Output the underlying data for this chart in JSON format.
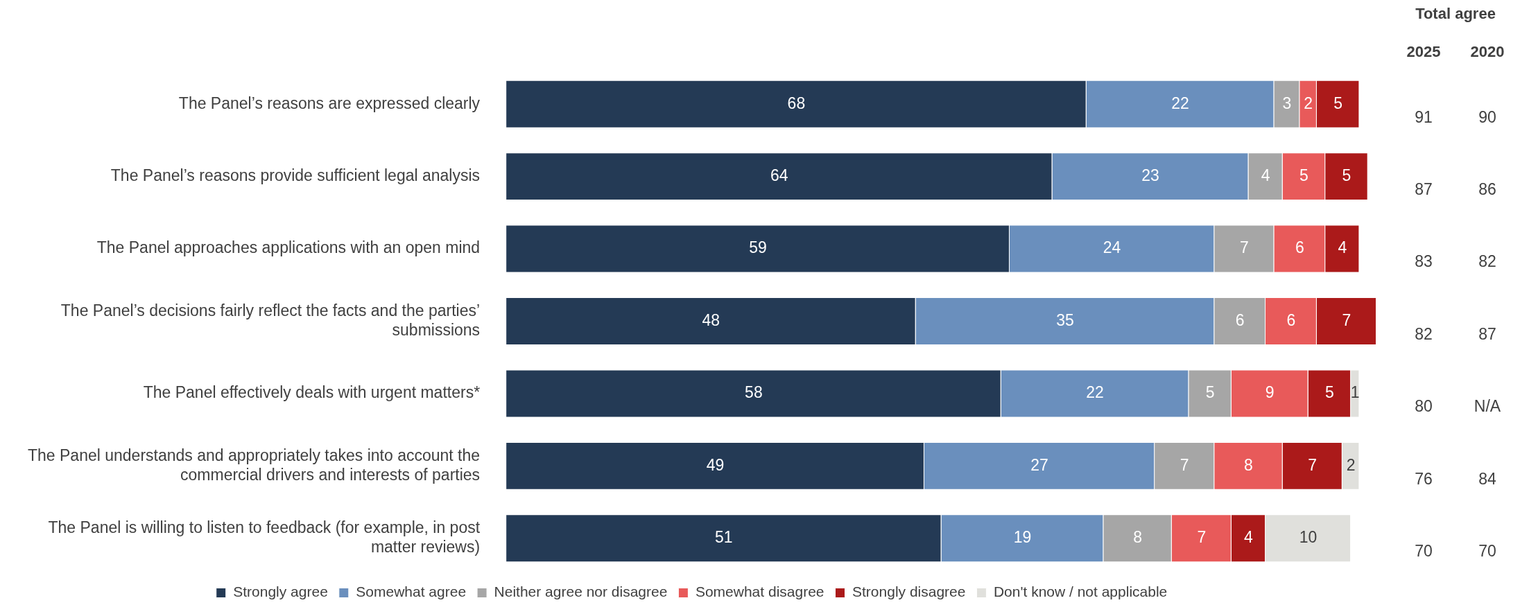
{
  "chart_data": {
    "type": "bar",
    "orientation": "horizontal",
    "stacked": true,
    "data_labels": true,
    "legend": "bottom",
    "grid": false,
    "tick_labels": "y",
    "xlim": [
      0,
      102
    ],
    "categories": [
      "The Panel’s reasons are expressed clearly",
      "The Panel’s reasons provide sufficient legal analysis",
      "The Panel approaches applications with an open mind",
      "The Panel’s decisions fairly reflect the facts and the parties’ submissions",
      "The Panel effectively deals with urgent matters*",
      "The Panel understands and appropriately takes into account the commercial drivers and interests of parties",
      "The Panel is willing to listen to feedback (for example, in post matter reviews)"
    ],
    "series": [
      {
        "name": "Strongly agree",
        "color": "#243a55",
        "values": [
          68,
          64,
          59,
          48,
          58,
          49,
          51
        ]
      },
      {
        "name": "Somewhat agree",
        "color": "#6a8fbd",
        "values": [
          22,
          23,
          24,
          35,
          22,
          27,
          19
        ]
      },
      {
        "name": "Neither agree nor disagree",
        "color": "#a6a6a6",
        "values": [
          3,
          4,
          7,
          6,
          5,
          7,
          8
        ]
      },
      {
        "name": "Somewhat disagree",
        "color": "#e85a5a",
        "values": [
          2,
          5,
          6,
          6,
          9,
          8,
          7
        ]
      },
      {
        "name": "Strongly disagree",
        "color": "#ab1a1a",
        "values": [
          5,
          5,
          4,
          7,
          5,
          7,
          4
        ]
      },
      {
        "name": "Don't know / not applicable",
        "color": "#e0e0dc",
        "values": [
          null,
          null,
          null,
          null,
          1,
          2,
          10
        ]
      }
    ],
    "annotations": [
      "Total agree",
      "2025",
      "2020",
      "91",
      "90",
      "87",
      "86",
      "83",
      "82",
      "82",
      "87",
      "80",
      "N/A",
      "76",
      "84",
      "70",
      "70"
    ]
  }
}
